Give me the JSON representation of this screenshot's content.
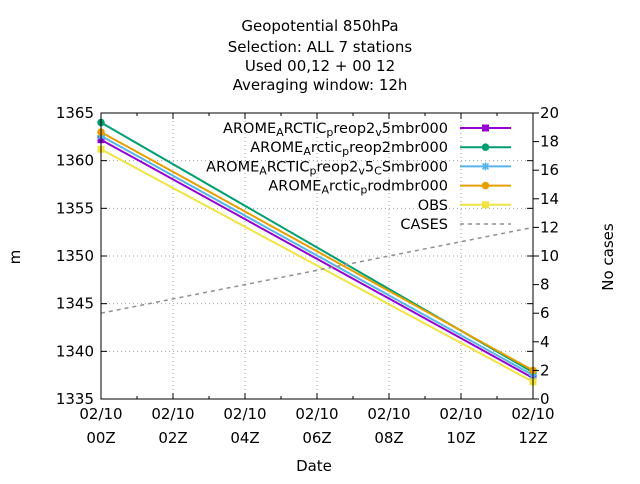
{
  "chart_data": {
    "type": "line",
    "title_lines": [
      "Geopotential 850hPa",
      "Selection: ALL      7 stations",
      "Used  00,12  + 00 12",
      "Averaging window: 12h"
    ],
    "xlabel": "Date",
    "ylabel": "m",
    "y2label": "No cases",
    "x_ticks": [
      {
        "x": 0,
        "line1": "02/10",
        "line2": "00Z"
      },
      {
        "x": 2,
        "line1": "02/10",
        "line2": "02Z"
      },
      {
        "x": 4,
        "line1": "02/10",
        "line2": "04Z"
      },
      {
        "x": 6,
        "line1": "02/10",
        "line2": "06Z"
      },
      {
        "x": 8,
        "line1": "02/10",
        "line2": "08Z"
      },
      {
        "x": 10,
        "line1": "02/10",
        "line2": "10Z"
      },
      {
        "x": 12,
        "line1": "02/10",
        "line2": "12Z"
      }
    ],
    "xlim": [
      0,
      12
    ],
    "ylim": [
      1335,
      1365
    ],
    "y_ticks": [
      1335,
      1340,
      1345,
      1350,
      1355,
      1360,
      1365
    ],
    "y2lim": [
      0,
      20
    ],
    "y2_ticks": [
      0,
      2,
      4,
      6,
      8,
      10,
      12,
      14,
      16,
      18,
      20
    ],
    "legend_position": "top-right",
    "grid": true,
    "series": [
      {
        "legend": [
          {
            "t": "AROME",
            "s": ""
          },
          {
            "t": "A",
            "s": "sub"
          },
          {
            "t": "RCTIC",
            "s": ""
          },
          {
            "t": "p",
            "s": "sub"
          },
          {
            "t": "reop2",
            "s": ""
          },
          {
            "t": "v",
            "s": "sub"
          },
          {
            "t": "5mbr000",
            "s": ""
          }
        ],
        "color": "#9400d3",
        "marker": "square",
        "dashed": false,
        "axis": "y1",
        "x": [
          0,
          12
        ],
        "y": [
          1362.2,
          1337.2
        ]
      },
      {
        "legend": [
          {
            "t": "AROME",
            "s": ""
          },
          {
            "t": "A",
            "s": "sub"
          },
          {
            "t": "rctic",
            "s": ""
          },
          {
            "t": "p",
            "s": "sub"
          },
          {
            "t": "reop2mbr000",
            "s": ""
          }
        ],
        "color": "#009e73",
        "marker": "circle",
        "dashed": false,
        "axis": "y1",
        "x": [
          0,
          12
        ],
        "y": [
          1364.0,
          1337.8
        ]
      },
      {
        "legend": [
          {
            "t": "AROME",
            "s": ""
          },
          {
            "t": "A",
            "s": "sub"
          },
          {
            "t": "RCTIC",
            "s": ""
          },
          {
            "t": "p",
            "s": "sub"
          },
          {
            "t": "reop2",
            "s": ""
          },
          {
            "t": "v",
            "s": "sub"
          },
          {
            "t": "5",
            "s": ""
          },
          {
            "t": "C",
            "s": "sub"
          },
          {
            "t": "Smbr000",
            "s": ""
          }
        ],
        "color": "#56b4e9",
        "marker": "star",
        "dashed": false,
        "axis": "y1",
        "x": [
          0,
          12
        ],
        "y": [
          1362.6,
          1337.5
        ]
      },
      {
        "legend": [
          {
            "t": "AROME",
            "s": ""
          },
          {
            "t": "A",
            "s": "sub"
          },
          {
            "t": "rctic",
            "s": ""
          },
          {
            "t": "p",
            "s": "sub"
          },
          {
            "t": "rodmbr000",
            "s": ""
          }
        ],
        "color": "#e69f00",
        "marker": "circle",
        "dashed": false,
        "axis": "y1",
        "x": [
          0,
          12
        ],
        "y": [
          1363.0,
          1338.0
        ]
      },
      {
        "legend": [
          {
            "t": "OBS",
            "s": ""
          }
        ],
        "color": "#f0e442",
        "marker": "square",
        "dashed": false,
        "axis": "y1",
        "x": [
          0,
          12
        ],
        "y": [
          1361.2,
          1336.8
        ]
      },
      {
        "legend": [
          {
            "t": "CASES",
            "s": ""
          }
        ],
        "color": "#909090",
        "marker": "none",
        "dashed": true,
        "axis": "y2",
        "x": [
          0,
          12
        ],
        "y": [
          6,
          12
        ]
      }
    ]
  }
}
